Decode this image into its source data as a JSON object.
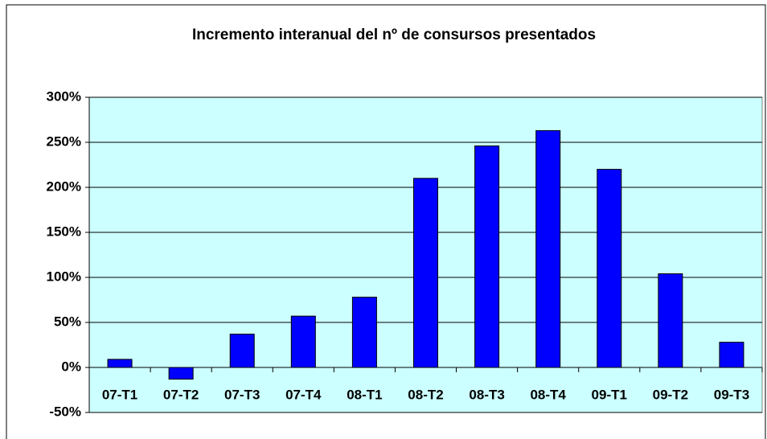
{
  "chart_data": {
    "type": "bar",
    "title": "Incremento interanual del nº de consursos presentados",
    "categories": [
      "07-T1",
      "07-T2",
      "07-T3",
      "07-T4",
      "08-T1",
      "08-T2",
      "08-T3",
      "08-T4",
      "09-T1",
      "09-T2",
      "09-T3"
    ],
    "values": [
      9,
      -13,
      37,
      57,
      78,
      210,
      246,
      263,
      220,
      104,
      28
    ],
    "color": "#0000ff",
    "ylim": [
      -50,
      300
    ],
    "yticks": [
      {
        "value": -50,
        "label": "-50%"
      },
      {
        "value": 0,
        "label": "0%"
      },
      {
        "value": 50,
        "label": "50%"
      },
      {
        "value": 100,
        "label": "100%"
      },
      {
        "value": 150,
        "label": "150%"
      },
      {
        "value": 200,
        "label": "200%"
      },
      {
        "value": 250,
        "label": "250%"
      },
      {
        "value": 300,
        "label": "300%"
      }
    ],
    "grid": true
  }
}
